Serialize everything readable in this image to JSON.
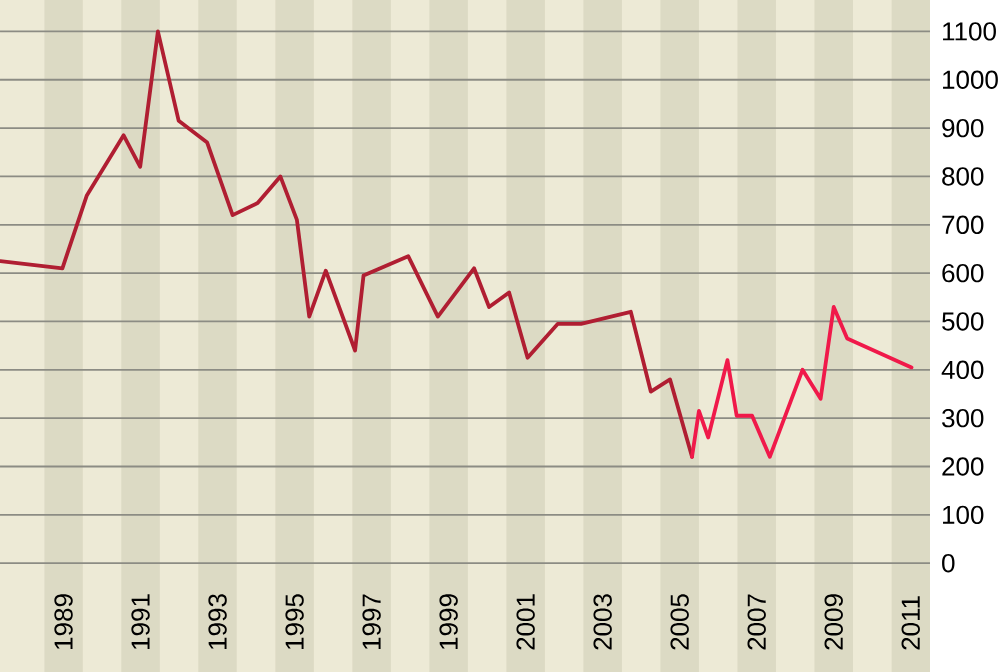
{
  "chart_data": {
    "type": "line",
    "xlim": [
      1987.85,
      2012
    ],
    "ylim": [
      -225,
      1165
    ],
    "xticks": [
      {
        "value": 1989.5,
        "label": "1989"
      },
      {
        "value": 1991.5,
        "label": "1991"
      },
      {
        "value": 1993.5,
        "label": "1993"
      },
      {
        "value": 1995.5,
        "label": "1995"
      },
      {
        "value": 1997.5,
        "label": "1997"
      },
      {
        "value": 1999.5,
        "label": "1999"
      },
      {
        "value": 2001.5,
        "label": "2001"
      },
      {
        "value": 2003.5,
        "label": "2003"
      },
      {
        "value": 2005.5,
        "label": "2005"
      },
      {
        "value": 2007.5,
        "label": "2007"
      },
      {
        "value": 2009.5,
        "label": "2009"
      },
      {
        "value": 2011.5,
        "label": "2011"
      }
    ],
    "yticks": [
      0,
      100,
      200,
      300,
      400,
      500,
      600,
      700,
      800,
      900,
      1000,
      1100
    ],
    "grid": "y",
    "marker": "none",
    "line_style": "solid",
    "series": [
      {
        "color": "#b01e32",
        "x": [
          1987.86,
          1989.47,
          1990.1,
          1991.06,
          1991.49,
          1991.95,
          1992.49,
          1993.23,
          1993.89,
          1994.54,
          1995.13,
          1995.56,
          1995.88,
          1996.31,
          1997.07,
          1997.29,
          1998.45,
          1999.22,
          2000.16,
          2000.55,
          2001.07,
          2001.55,
          2002.33,
          2002.94,
          2004.23,
          2004.75,
          2005.25,
          2005.82
        ],
        "values": [
          625,
          610,
          760,
          885,
          820,
          1100,
          915,
          870,
          720,
          745,
          800,
          710,
          510,
          605,
          440,
          595,
          635,
          510,
          610,
          530,
          560,
          425,
          495,
          495,
          520,
          355,
          380,
          220
        ]
      },
      {
        "color": "#f0194a",
        "x": [
          2005.82,
          2006.0,
          2006.24,
          2006.74,
          2006.98,
          2007.38,
          2007.84,
          2008.69,
          2009.16,
          2009.5,
          2009.85,
          2011.52
        ],
        "values": [
          220,
          315,
          260,
          420,
          305,
          305,
          220,
          400,
          340,
          530,
          465,
          405
        ]
      }
    ],
    "bands": [
      {
        "axis": "x",
        "from": 1989,
        "to": 1990,
        "color": "#dcdac4"
      },
      {
        "axis": "x",
        "from": 1991,
        "to": 1992,
        "color": "#dcdac4"
      },
      {
        "axis": "x",
        "from": 1993,
        "to": 1994,
        "color": "#dcdac4"
      },
      {
        "axis": "x",
        "from": 1995,
        "to": 1996,
        "color": "#dcdac4"
      },
      {
        "axis": "x",
        "from": 1997,
        "to": 1998,
        "color": "#dcdac4"
      },
      {
        "axis": "x",
        "from": 1999,
        "to": 2000,
        "color": "#dcdac4"
      },
      {
        "axis": "x",
        "from": 2001,
        "to": 2002,
        "color": "#dcdac4"
      },
      {
        "axis": "x",
        "from": 2003,
        "to": 2004,
        "color": "#dcdac4"
      },
      {
        "axis": "x",
        "from": 2005,
        "to": 2006,
        "color": "#dcdac4"
      },
      {
        "axis": "x",
        "from": 2007,
        "to": 2008,
        "color": "#dcdac4"
      },
      {
        "axis": "x",
        "from": 2009,
        "to": 2010,
        "color": "#dcdac4"
      },
      {
        "axis": "x",
        "from": 2011,
        "to": 2012,
        "color": "#dcdac4"
      }
    ]
  }
}
